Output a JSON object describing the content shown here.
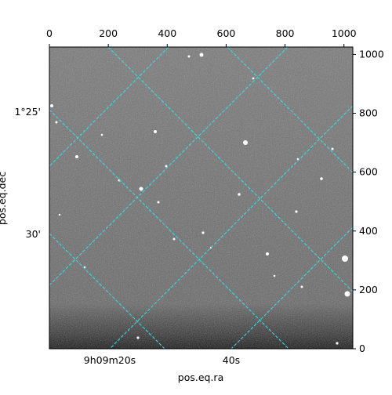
{
  "chart_data": {
    "type": "image",
    "xlabel": "pos.eq.ra",
    "ylabel": "pos.eq.dec",
    "xlim": [
      0,
      1030
    ],
    "ylim": [
      0,
      1025
    ],
    "xticks": [
      0,
      200,
      400,
      600,
      800,
      1000
    ],
    "yticks": [
      0,
      200,
      400,
      600,
      800,
      1000
    ],
    "ra_ticks": [
      "9h09m20s",
      "40s"
    ],
    "dec_ticks": [
      "1°25'",
      "30'"
    ]
  }
}
